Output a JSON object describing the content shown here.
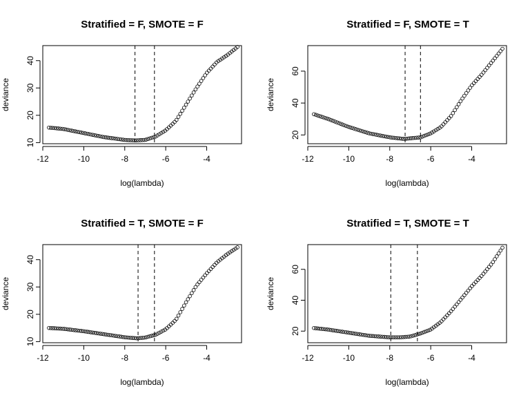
{
  "chart_data": [
    {
      "type": "scatter",
      "title": "Stratified = F, SMOTE = F",
      "xlabel": "log(lambda)",
      "ylabel": "deviance",
      "xlim": [
        -12,
        -2.3
      ],
      "ylim": [
        9.6,
        45.5
      ],
      "xticks": [
        -12,
        -10,
        -8,
        -6,
        -4
      ],
      "yticks": [
        10,
        20,
        30,
        40
      ],
      "vlines": [
        -7.5,
        -6.55
      ],
      "x_start": -11.7,
      "x_end": -2.5,
      "n_points": 100,
      "curve": [
        [
          -11.7,
          15.5
        ],
        [
          -11.0,
          15.0
        ],
        [
          -10.0,
          13.5
        ],
        [
          -9.0,
          12.0
        ],
        [
          -8.0,
          11.0
        ],
        [
          -7.5,
          10.8
        ],
        [
          -7.0,
          11.0
        ],
        [
          -6.5,
          12.2
        ],
        [
          -6.0,
          14.5
        ],
        [
          -5.5,
          18.0
        ],
        [
          -5.0,
          24.0
        ],
        [
          -4.5,
          30.0
        ],
        [
          -4.0,
          35.5
        ],
        [
          -3.5,
          39.5
        ],
        [
          -3.0,
          42.0
        ],
        [
          -2.5,
          45.0
        ]
      ],
      "grid": false,
      "legend": "none"
    },
    {
      "type": "scatter",
      "title": "Stratified = F, SMOTE = T",
      "xlabel": "log(lambda)",
      "ylabel": "deviance",
      "xlim": [
        -12,
        -2.3
      ],
      "ylim": [
        14.5,
        76
      ],
      "xticks": [
        -12,
        -10,
        -8,
        -6,
        -4
      ],
      "yticks": [
        20,
        40,
        60
      ],
      "vlines": [
        -7.25,
        -6.5
      ],
      "x_start": -11.7,
      "x_end": -2.5,
      "n_points": 100,
      "curve": [
        [
          -11.7,
          33.0
        ],
        [
          -11.0,
          30.0
        ],
        [
          -10.0,
          25.0
        ],
        [
          -9.0,
          21.0
        ],
        [
          -8.0,
          18.5
        ],
        [
          -7.3,
          17.5
        ],
        [
          -6.5,
          18.5
        ],
        [
          -6.0,
          21.0
        ],
        [
          -5.5,
          25.0
        ],
        [
          -5.0,
          32.0
        ],
        [
          -4.5,
          42.0
        ],
        [
          -4.0,
          51.0
        ],
        [
          -3.5,
          58.0
        ],
        [
          -3.0,
          66.0
        ],
        [
          -2.5,
          74.0
        ]
      ],
      "grid": false,
      "legend": "none"
    },
    {
      "type": "scatter",
      "title": "Stratified = T, SMOTE = F",
      "xlabel": "log(lambda)",
      "ylabel": "deviance",
      "xlim": [
        -12,
        -2.3
      ],
      "ylim": [
        9.6,
        45.5
      ],
      "xticks": [
        -12,
        -10,
        -8,
        -6,
        -4
      ],
      "yticks": [
        10,
        20,
        30,
        40
      ],
      "vlines": [
        -7.35,
        -6.55
      ],
      "x_start": -11.7,
      "x_end": -2.5,
      "n_points": 100,
      "curve": [
        [
          -11.7,
          15.0
        ],
        [
          -11.0,
          14.7
        ],
        [
          -10.0,
          13.8
        ],
        [
          -9.0,
          12.7
        ],
        [
          -8.0,
          11.6
        ],
        [
          -7.4,
          11.2
        ],
        [
          -7.0,
          11.5
        ],
        [
          -6.5,
          12.5
        ],
        [
          -6.0,
          14.5
        ],
        [
          -5.5,
          18.0
        ],
        [
          -5.0,
          24.5
        ],
        [
          -4.5,
          30.5
        ],
        [
          -4.0,
          35.0
        ],
        [
          -3.5,
          39.0
        ],
        [
          -3.0,
          42.0
        ],
        [
          -2.5,
          44.5
        ]
      ],
      "grid": false,
      "legend": "none"
    },
    {
      "type": "scatter",
      "title": "Stratified = T, SMOTE = T",
      "xlabel": "log(lambda)",
      "ylabel": "deviance",
      "xlim": [
        -12,
        -2.3
      ],
      "ylim": [
        12.5,
        76
      ],
      "xticks": [
        -12,
        -10,
        -8,
        -6,
        -4
      ],
      "yticks": [
        20,
        40,
        60
      ],
      "vlines": [
        -7.95,
        -6.65
      ],
      "x_start": -11.7,
      "x_end": -2.5,
      "n_points": 100,
      "curve": [
        [
          -11.7,
          22.0
        ],
        [
          -11.0,
          21.0
        ],
        [
          -10.0,
          19.0
        ],
        [
          -9.0,
          17.0
        ],
        [
          -8.0,
          16.0
        ],
        [
          -7.5,
          16.0
        ],
        [
          -7.0,
          16.5
        ],
        [
          -6.5,
          18.5
        ],
        [
          -6.0,
          21.0
        ],
        [
          -5.5,
          26.0
        ],
        [
          -5.0,
          33.0
        ],
        [
          -4.5,
          41.0
        ],
        [
          -4.0,
          49.0
        ],
        [
          -3.5,
          56.0
        ],
        [
          -3.0,
          64.0
        ],
        [
          -2.5,
          74.0
        ]
      ],
      "grid": false,
      "legend": "none"
    }
  ]
}
